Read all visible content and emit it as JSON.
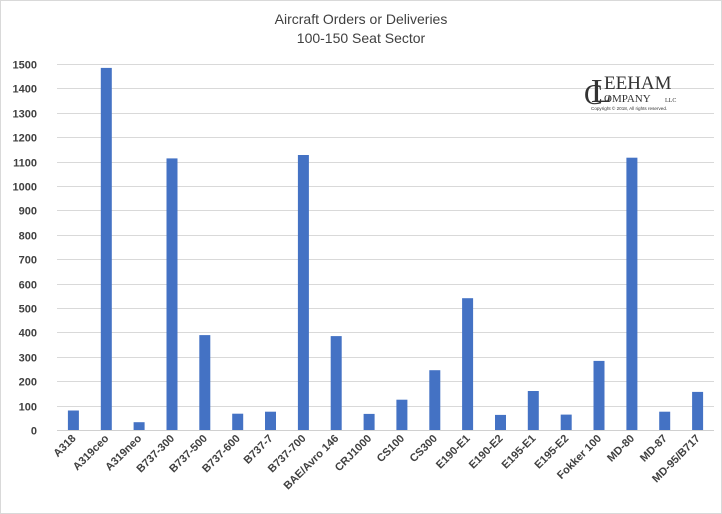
{
  "chart_data": {
    "type": "bar",
    "title": "Aircraft Orders or Deliveries",
    "subtitle": "100-150 Seat Sector",
    "categories": [
      "A318",
      "A319ceo",
      "A319neo",
      "B737-300",
      "B737-500",
      "B737-600",
      "B737-7",
      "B737-700",
      "BAE/Avro 146",
      "CRJ1000",
      "CS100",
      "CS300",
      "E190-E1",
      "E190-E2",
      "E195-E1",
      "E195-E2",
      "Fokker 100",
      "MD-80",
      "MD-87",
      "MD-95/B717"
    ],
    "values": [
      80,
      1484,
      32,
      1113,
      389,
      67,
      75,
      1127,
      385,
      66,
      124,
      245,
      540,
      62,
      160,
      63,
      283,
      1116,
      75,
      156
    ],
    "ylim": [
      0,
      1500
    ],
    "yticks": [
      0,
      100,
      200,
      300,
      400,
      500,
      600,
      700,
      800,
      900,
      1000,
      1100,
      1200,
      1300,
      1400,
      1500
    ],
    "bar_color": "#4472c4",
    "grid": true,
    "legend": "none"
  },
  "logo": {
    "line1": "EEHAM",
    "line2": "OMPANY",
    "suffix": "LLC",
    "copyright": "Copyright © 2018, All rights reserved."
  }
}
